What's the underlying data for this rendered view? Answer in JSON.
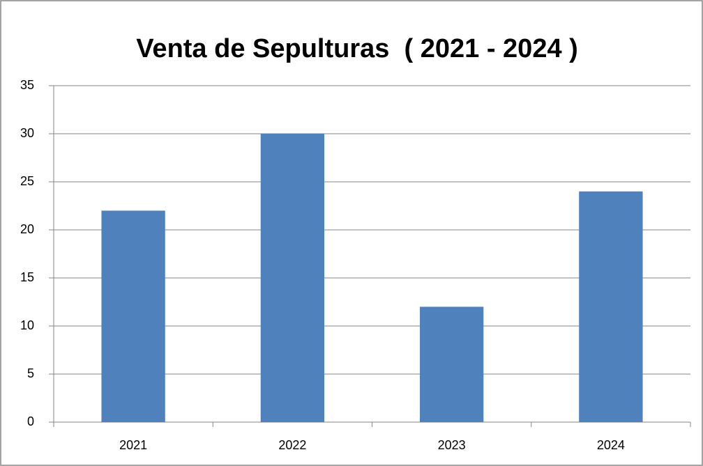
{
  "chart_data": {
    "type": "bar",
    "title": "Venta de Sepulturas  ( 2021 - 2024 )",
    "categories": [
      "2021",
      "2022",
      "2023",
      "2024"
    ],
    "values": [
      22,
      30,
      12,
      24
    ],
    "color": "#4f81bd",
    "ylim": [
      0,
      35
    ],
    "yticks": [
      0,
      5,
      10,
      15,
      20,
      25,
      30,
      35
    ],
    "grid": true
  }
}
